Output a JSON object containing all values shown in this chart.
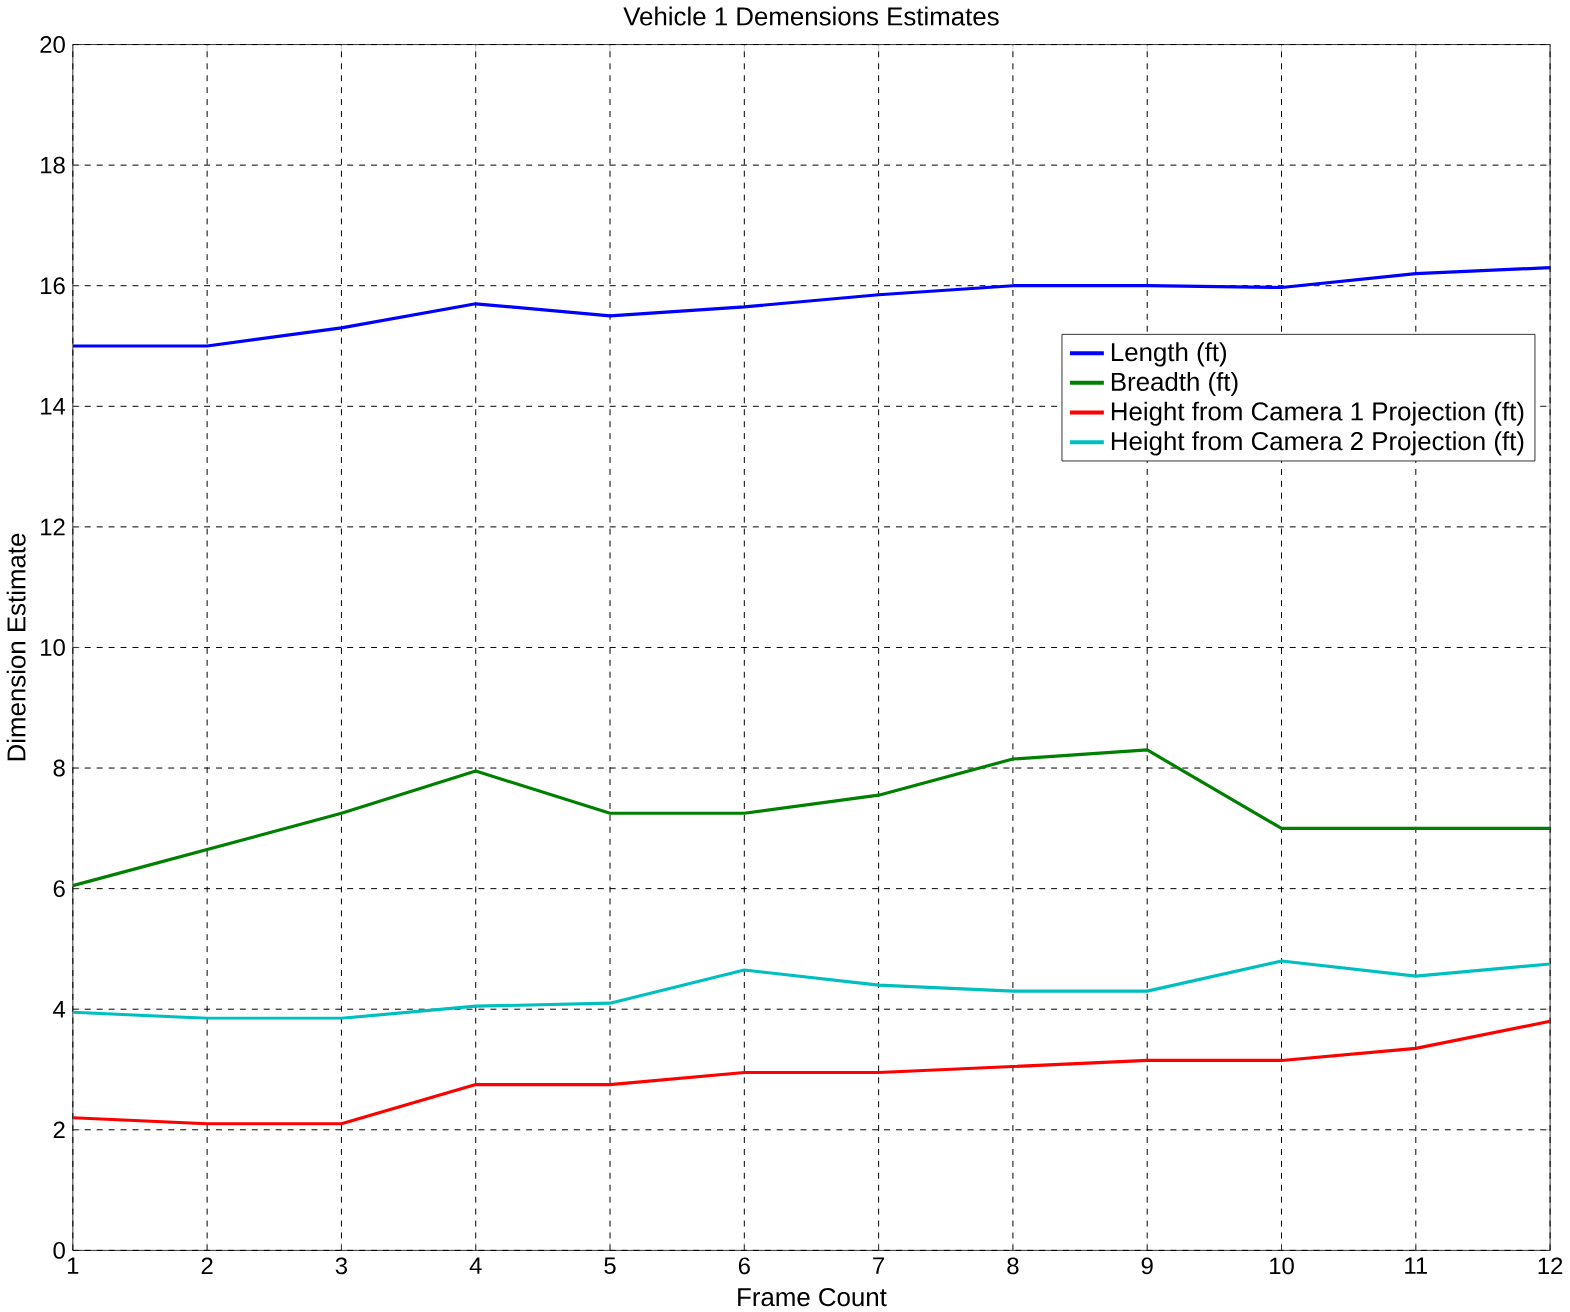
{
  "chart_data": {
    "type": "line",
    "title": "Vehicle 1 Demensions Estimates",
    "xlabel": "Frame Count",
    "ylabel": "Dimension Estimate",
    "x": [
      1,
      2,
      3,
      4,
      5,
      6,
      7,
      8,
      9,
      10,
      11,
      12
    ],
    "series": [
      {
        "name": "Length (ft)",
        "color": "#0000ff",
        "values": [
          15.0,
          15.0,
          15.3,
          15.7,
          15.5,
          15.65,
          15.85,
          16.0,
          16.0,
          15.97,
          16.2,
          16.3
        ]
      },
      {
        "name": "Breadth (ft)",
        "color": "#008000",
        "values": [
          6.05,
          6.65,
          7.25,
          7.95,
          7.25,
          7.25,
          7.55,
          8.15,
          8.3,
          7.0,
          7.0,
          7.0
        ]
      },
      {
        "name": "Height from Camera 1 Projection (ft)",
        "color": "#ff0000",
        "values": [
          2.2,
          2.1,
          2.1,
          2.75,
          2.75,
          2.95,
          2.95,
          3.05,
          3.15,
          3.15,
          3.35,
          3.8
        ]
      },
      {
        "name": "Height from Camera 2 Projection (ft)",
        "color": "#00bfbf",
        "values": [
          3.95,
          3.85,
          3.85,
          4.05,
          4.1,
          4.65,
          4.4,
          4.3,
          4.3,
          4.8,
          4.55,
          4.75
        ]
      }
    ],
    "xlim": [
      1,
      12
    ],
    "xticks": [
      1,
      2,
      3,
      4,
      5,
      6,
      7,
      8,
      9,
      10,
      11,
      12
    ],
    "ylim": [
      0,
      20
    ],
    "yticks": [
      0,
      2,
      4,
      6,
      8,
      10,
      12,
      14,
      16,
      18,
      20
    ],
    "grid": true,
    "legend": "right",
    "marker": "none",
    "line_style": "solid"
  }
}
